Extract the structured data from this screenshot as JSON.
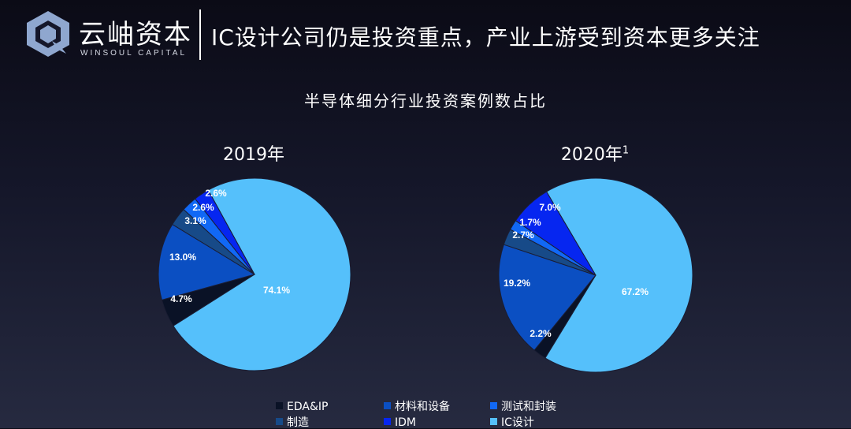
{
  "header": {
    "logo_cn": "云岫资本",
    "logo_en": "WINSOUL CAPITAL",
    "title": "IC设计公司仍是投资重点，产业上游受到资本更多关注"
  },
  "chart_data": [
    {
      "type": "pie",
      "title": "半导体细分行业投资案例数占比",
      "subtitle": "2019年",
      "footnote_marker": "",
      "legend_position": "bottom",
      "slices": [
        {
          "label": "IC设计",
          "value": 74.1,
          "display": "74.1%",
          "color": "#55c0fb"
        },
        {
          "label": "EDA&IP",
          "value": 4.7,
          "display": "4.7%",
          "color": "#0a1226"
        },
        {
          "label": "材料和设备",
          "value": 13.0,
          "display": "13.0%",
          "color": "#0b4fc2"
        },
        {
          "label": "制造",
          "value": 3.1,
          "display": "3.1%",
          "color": "#174a88"
        },
        {
          "label": "测试和封装",
          "value": 2.6,
          "display": "2.6%",
          "color": "#1168f5"
        },
        {
          "label": "IDM",
          "value": 2.6,
          "display": "2.6%",
          "color": "#0626f0"
        }
      ]
    },
    {
      "type": "pie",
      "title": "半导体细分行业投资案例数占比",
      "subtitle": "2020年",
      "footnote_marker": "1",
      "legend_position": "bottom",
      "slices": [
        {
          "label": "IC设计",
          "value": 67.2,
          "display": "67.2%",
          "color": "#55c0fb"
        },
        {
          "label": "EDA&IP",
          "value": 2.2,
          "display": "2.2%",
          "color": "#0a1226"
        },
        {
          "label": "材料和设备",
          "value": 19.2,
          "display": "19.2%",
          "color": "#0b4fc2"
        },
        {
          "label": "制造",
          "value": 2.7,
          "display": "2.7%",
          "color": "#174a88"
        },
        {
          "label": "测试和封装",
          "value": 1.7,
          "display": "1.7%",
          "color": "#1168f5"
        },
        {
          "label": "IDM",
          "value": 7.0,
          "display": "7.0%",
          "color": "#0626f0"
        }
      ]
    }
  ],
  "legend": [
    {
      "label": "EDA&IP",
      "color": "#0a1226"
    },
    {
      "label": "材料和设备",
      "color": "#0b4fc2"
    },
    {
      "label": "测试和封装",
      "color": "#1168f5"
    },
    {
      "label": "制造",
      "color": "#174a88"
    },
    {
      "label": "IDM",
      "color": "#0626f0"
    },
    {
      "label": "IC设计",
      "color": "#55c0fb"
    }
  ]
}
